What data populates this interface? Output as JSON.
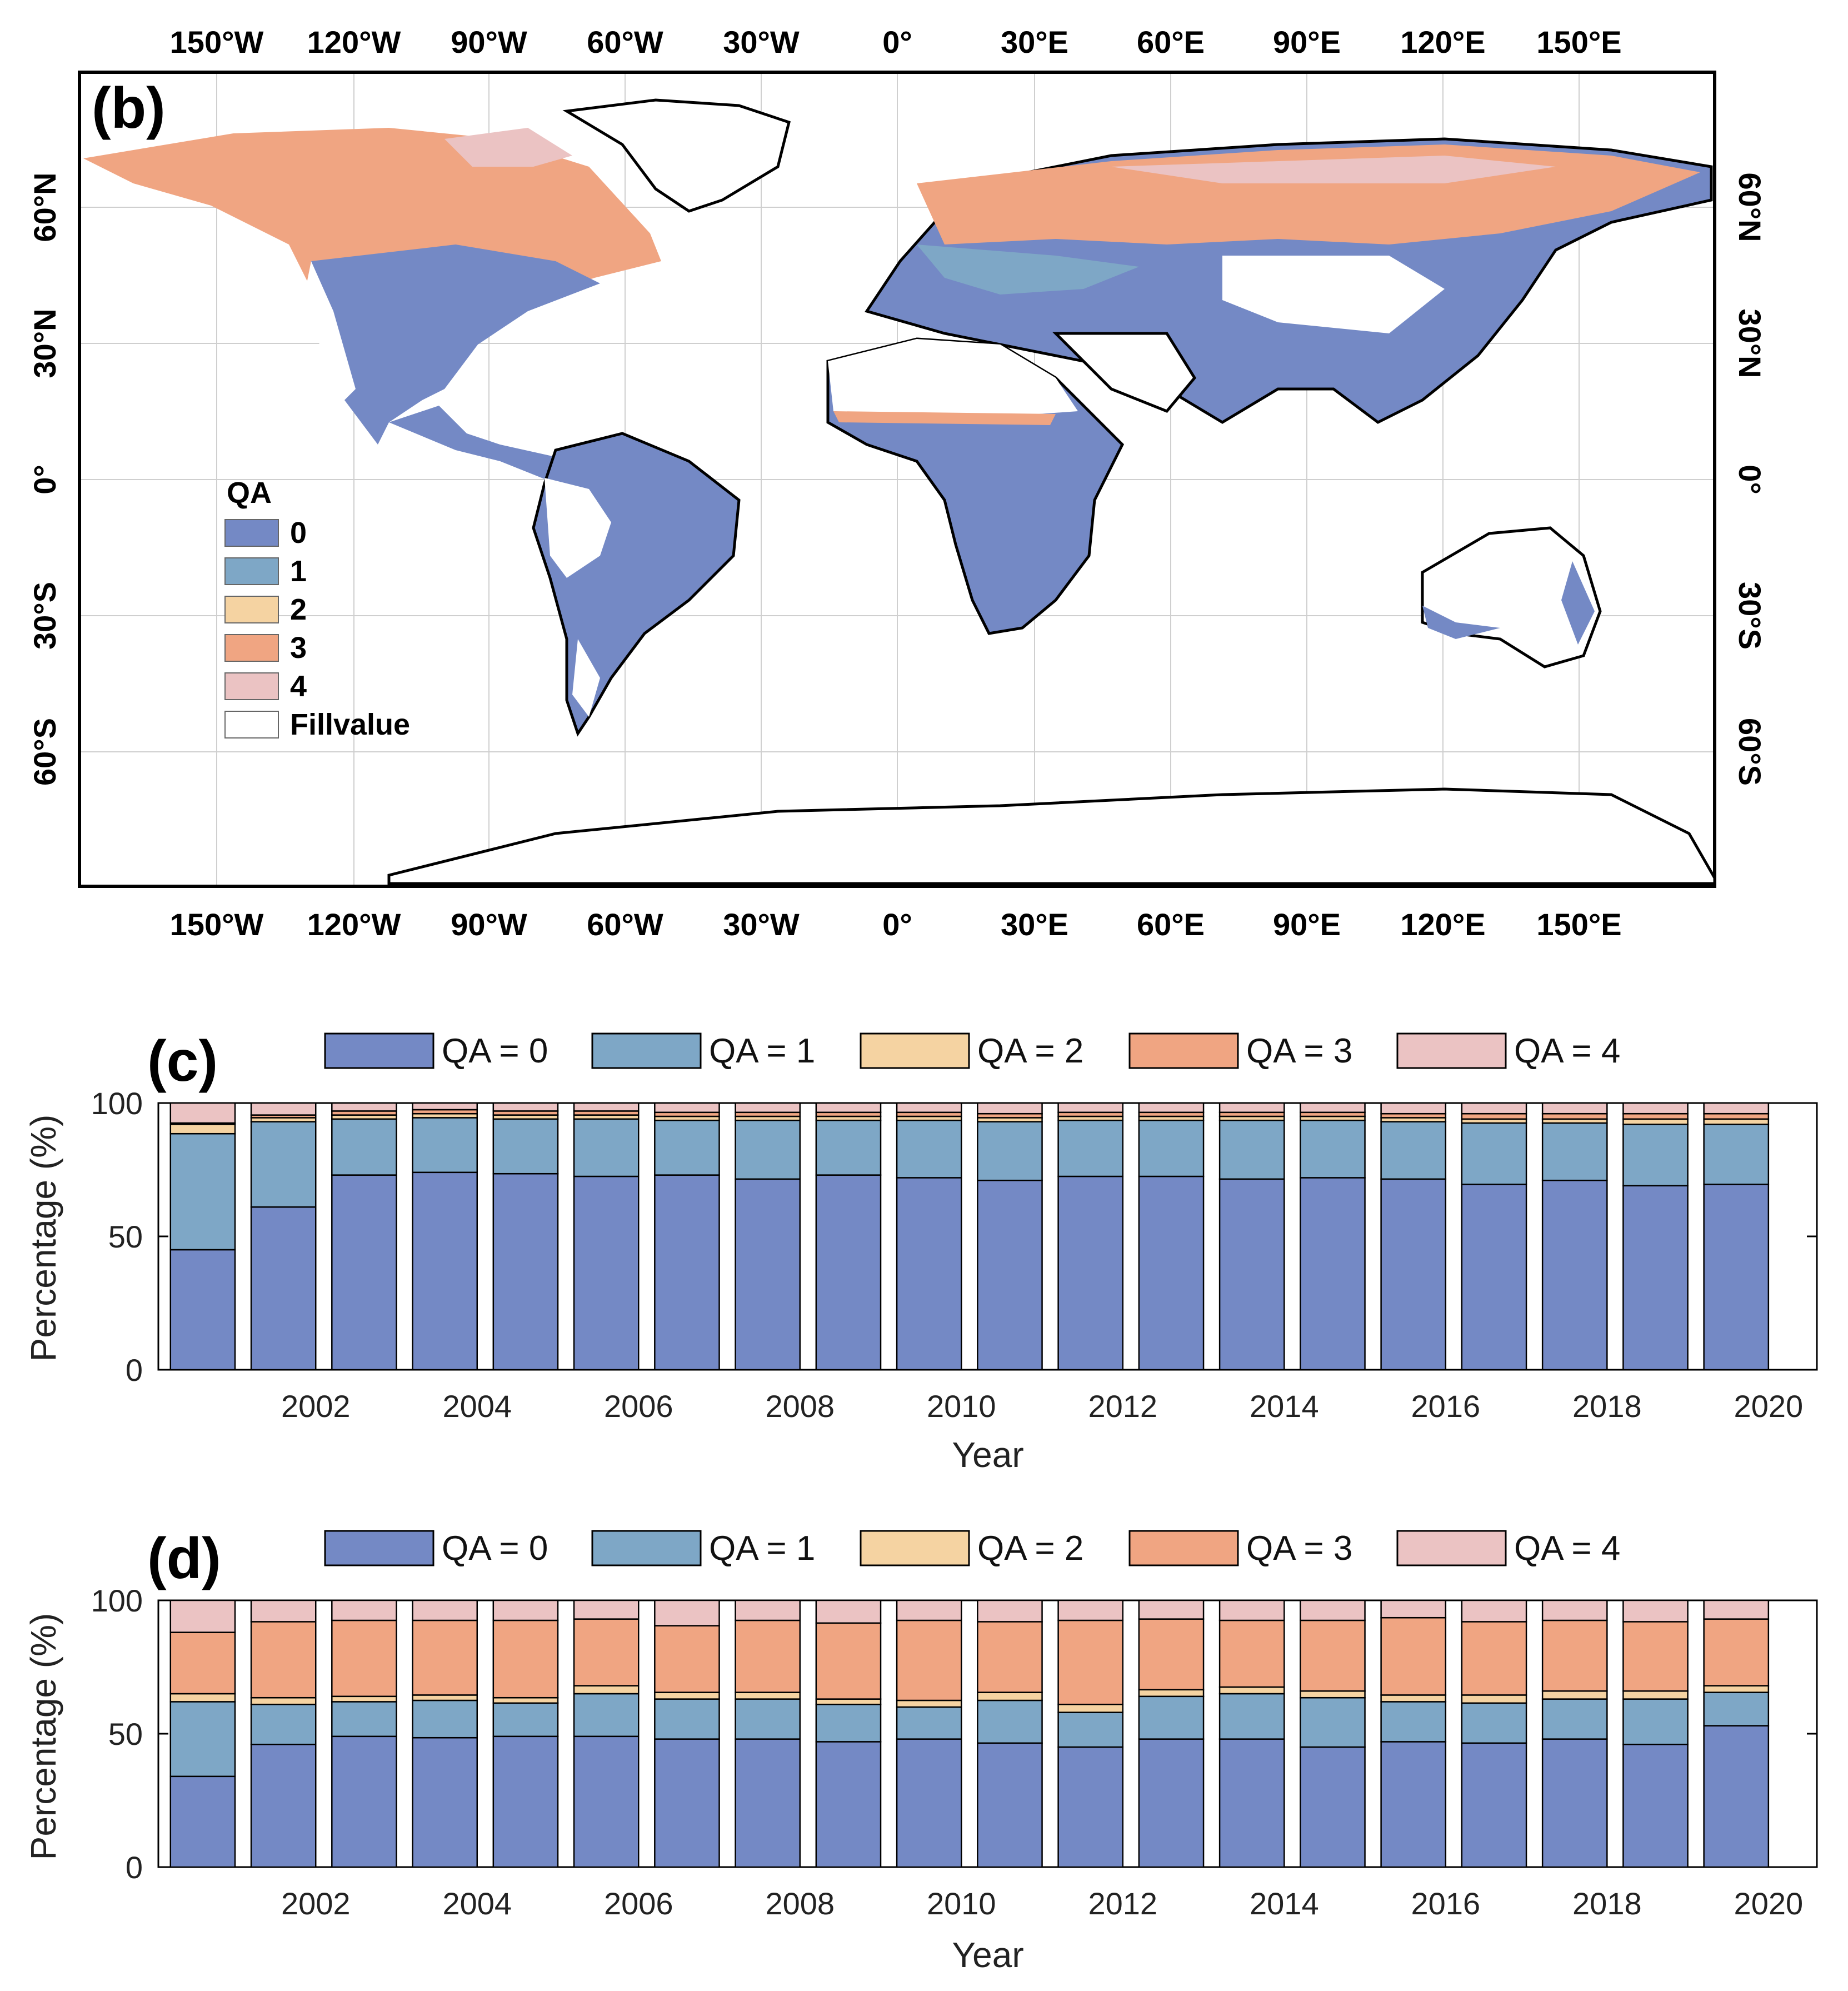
{
  "colors": {
    "qa0": "#7489c5",
    "qa1": "#7ea7c6",
    "qa2": "#f5d3a2",
    "qa3": "#f0a582",
    "qa4": "#ebc3c3",
    "fill": "#ffffff"
  },
  "map": {
    "panel_label": "(b)",
    "lon_labels": [
      "150°W",
      "120°W",
      "90°W",
      "60°W",
      "30°W",
      "0°",
      "30°E",
      "60°E",
      "90°E",
      "120°E",
      "150°E"
    ],
    "lat_labels_left": [
      "60°N",
      "30°N",
      "0°",
      "30°S",
      "60°S"
    ],
    "lat_labels_right": [
      "60°N",
      "30°N",
      "0°",
      "30°S",
      "60°S"
    ],
    "legend": {
      "title": "QA",
      "items": [
        "0",
        "1",
        "2",
        "3",
        "4",
        "Fillvalue"
      ]
    }
  },
  "chart_data": [
    {
      "type": "bar",
      "stacked": true,
      "panel_label": "(c)",
      "xlabel": "Year",
      "ylabel": "Percentage (%)",
      "ylim": [
        0,
        100
      ],
      "yticks": [
        "0",
        "50",
        "100"
      ],
      "xticks": [
        "2002",
        "2004",
        "2006",
        "2008",
        "2010",
        "2012",
        "2014",
        "2016",
        "2018",
        "2020"
      ],
      "categories": [
        "2001",
        "2002",
        "2003",
        "2004",
        "2005",
        "2006",
        "2007",
        "2008",
        "2009",
        "2010",
        "2011",
        "2012",
        "2013",
        "2014",
        "2015",
        "2016",
        "2017",
        "2018",
        "2019",
        "2020"
      ],
      "series": [
        {
          "name": "QA = 0",
          "values": [
            45,
            61,
            73,
            74,
            73.5,
            72.5,
            73,
            71.5,
            73,
            72,
            71,
            72.5,
            72.5,
            71.5,
            72,
            71.5,
            69.5,
            71,
            69,
            69.5
          ]
        },
        {
          "name": "QA = 1",
          "values": [
            43.5,
            32,
            21,
            20.5,
            20.5,
            21.5,
            20.5,
            22,
            20.5,
            21.5,
            22,
            21,
            21,
            22,
            21.5,
            21.5,
            23,
            21.5,
            23,
            22.5
          ]
        },
        {
          "name": "QA = 2",
          "values": [
            3.5,
            1.5,
            1.5,
            1.5,
            1.5,
            1.5,
            1.5,
            1.5,
            1.5,
            1.5,
            1.5,
            1.5,
            1.5,
            1.5,
            1.5,
            1.5,
            1.5,
            1.5,
            2,
            2
          ]
        },
        {
          "name": "QA = 3",
          "values": [
            0.5,
            1,
            1.5,
            1.5,
            1.5,
            1.5,
            1.5,
            1.5,
            1.5,
            1.5,
            1.5,
            1.5,
            1.5,
            1.5,
            1.5,
            1.5,
            2,
            2,
            2,
            2
          ]
        },
        {
          "name": "QA = 4",
          "values": [
            7.5,
            4.5,
            3,
            2.5,
            3,
            3,
            3.5,
            3.5,
            3.5,
            3.5,
            4,
            3.5,
            3.5,
            3.5,
            3.5,
            4,
            4,
            4,
            4,
            4
          ]
        }
      ]
    },
    {
      "type": "bar",
      "stacked": true,
      "panel_label": "(d)",
      "xlabel": "Year",
      "ylabel": "Percentage (%)",
      "ylim": [
        0,
        100
      ],
      "yticks": [
        "0",
        "50",
        "100"
      ],
      "xticks": [
        "2002",
        "2004",
        "2006",
        "2008",
        "2010",
        "2012",
        "2014",
        "2016",
        "2018",
        "2020"
      ],
      "categories": [
        "2001",
        "2002",
        "2003",
        "2004",
        "2005",
        "2006",
        "2007",
        "2008",
        "2009",
        "2010",
        "2011",
        "2012",
        "2013",
        "2014",
        "2015",
        "2016",
        "2017",
        "2018",
        "2019",
        "2020"
      ],
      "series": [
        {
          "name": "QA = 0",
          "values": [
            34,
            46,
            49,
            48.5,
            49,
            49,
            48,
            48,
            47,
            48,
            46.5,
            45,
            48,
            48,
            45,
            47,
            46.5,
            48,
            46,
            53
          ]
        },
        {
          "name": "QA = 1",
          "values": [
            28,
            15,
            13,
            14,
            12.5,
            16,
            15,
            15,
            14,
            12,
            16,
            13,
            16,
            17,
            18.5,
            15,
            15,
            15,
            17,
            12.5
          ]
        },
        {
          "name": "QA = 2",
          "values": [
            3,
            2.5,
            2,
            2,
            2,
            3,
            2.5,
            2.5,
            2,
            2.5,
            3,
            3,
            2.5,
            2.5,
            2.5,
            2.5,
            3,
            3,
            3,
            2.5
          ]
        },
        {
          "name": "QA = 3",
          "values": [
            23,
            28.5,
            28.5,
            28,
            29,
            25,
            25,
            27,
            28.5,
            30,
            26.5,
            31.5,
            26.5,
            25,
            26.5,
            29,
            27.5,
            26.5,
            26,
            25
          ]
        },
        {
          "name": "QA = 4",
          "values": [
            12,
            8,
            7.5,
            7.5,
            7.5,
            7,
            9.5,
            7.5,
            8.5,
            7.5,
            8,
            7.5,
            7,
            7.5,
            7.5,
            6.5,
            8,
            7.5,
            8,
            7
          ]
        }
      ]
    }
  ]
}
